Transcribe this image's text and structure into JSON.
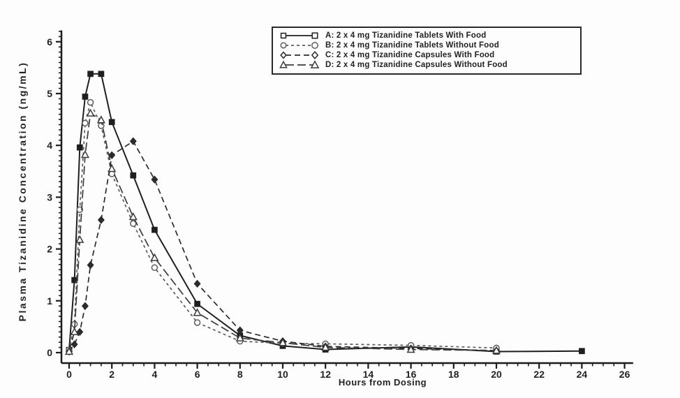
{
  "chart_data": {
    "type": "line",
    "title": "",
    "xlabel": "Hours from Dosing",
    "ylabel": "Plasma Tizanidine Concentration (ng/mL)",
    "xlim": [
      0,
      26
    ],
    "ylim": [
      0,
      6
    ],
    "grid": "off",
    "legend_position": "top-center",
    "x_major_ticks": [
      0,
      2,
      4,
      6,
      8,
      10,
      12,
      14,
      16,
      18,
      20,
      22,
      24,
      26
    ],
    "x_minor_tick_step": 0.5,
    "y_major_ticks": [
      0,
      1,
      2,
      3,
      4,
      5,
      6
    ],
    "y_minor_tick_step": 0.1,
    "series": [
      {
        "name": "A",
        "label": "A: 2 x 4 mg Tizanidine Tablets With Food",
        "marker": "square",
        "marker_fill": "filled",
        "line_style": "solid",
        "dash": "",
        "color": "#1f1f1f",
        "x": [
          0,
          0.25,
          0.5,
          0.75,
          1,
          1.5,
          2,
          3,
          4,
          6,
          8,
          10,
          12,
          16,
          20,
          24
        ],
        "y": [
          0.05,
          1.4,
          3.96,
          4.94,
          5.38,
          5.38,
          4.45,
          3.42,
          2.37,
          0.94,
          0.33,
          0.13,
          0.06,
          0.11,
          0.02,
          0.03
        ]
      },
      {
        "name": "B",
        "label": "B: 2 x 4 mg Tizanidine Tablets Without Food",
        "marker": "circle",
        "marker_fill": "open",
        "line_style": "short-dash",
        "dash": "4,4",
        "color": "#5c5c5c",
        "x": [
          0,
          0.25,
          0.5,
          0.75,
          1,
          1.5,
          2,
          3,
          4,
          6,
          8,
          10,
          12,
          16,
          20
        ],
        "y": [
          0.05,
          0.55,
          2.76,
          4.43,
          4.83,
          4.38,
          3.45,
          2.49,
          1.64,
          0.58,
          0.22,
          0.18,
          0.17,
          0.14,
          0.09
        ]
      },
      {
        "name": "C",
        "label": "C: 2 x 4 mg Tizanidine Capsules With Food",
        "marker": "diamond",
        "marker_fill": "filled",
        "line_style": "medium-dash",
        "dash": "8,5",
        "color": "#2b2b2b",
        "x": [
          0,
          0.25,
          0.5,
          0.75,
          1,
          1.5,
          2,
          3,
          4,
          6,
          8,
          10,
          12,
          16,
          20
        ],
        "y": [
          0.02,
          0.16,
          0.4,
          0.9,
          1.69,
          2.56,
          3.81,
          4.08,
          3.34,
          1.33,
          0.43,
          0.22,
          0.12,
          0.08,
          0.04
        ]
      },
      {
        "name": "D",
        "label": "D: 2 x 4 mg Tizanidine Capsules Without Food",
        "marker": "triangle",
        "marker_fill": "open",
        "line_style": "long-dash",
        "dash": "12,5",
        "color": "#3c3c3c",
        "x": [
          0,
          0.25,
          0.5,
          0.75,
          1,
          1.5,
          2,
          3,
          4,
          6,
          8,
          10,
          12,
          16,
          20
        ],
        "y": [
          0.02,
          0.4,
          2.18,
          3.82,
          4.62,
          4.49,
          3.55,
          2.62,
          1.83,
          0.77,
          0.28,
          0.19,
          0.1,
          0.06,
          0.04
        ]
      }
    ]
  }
}
